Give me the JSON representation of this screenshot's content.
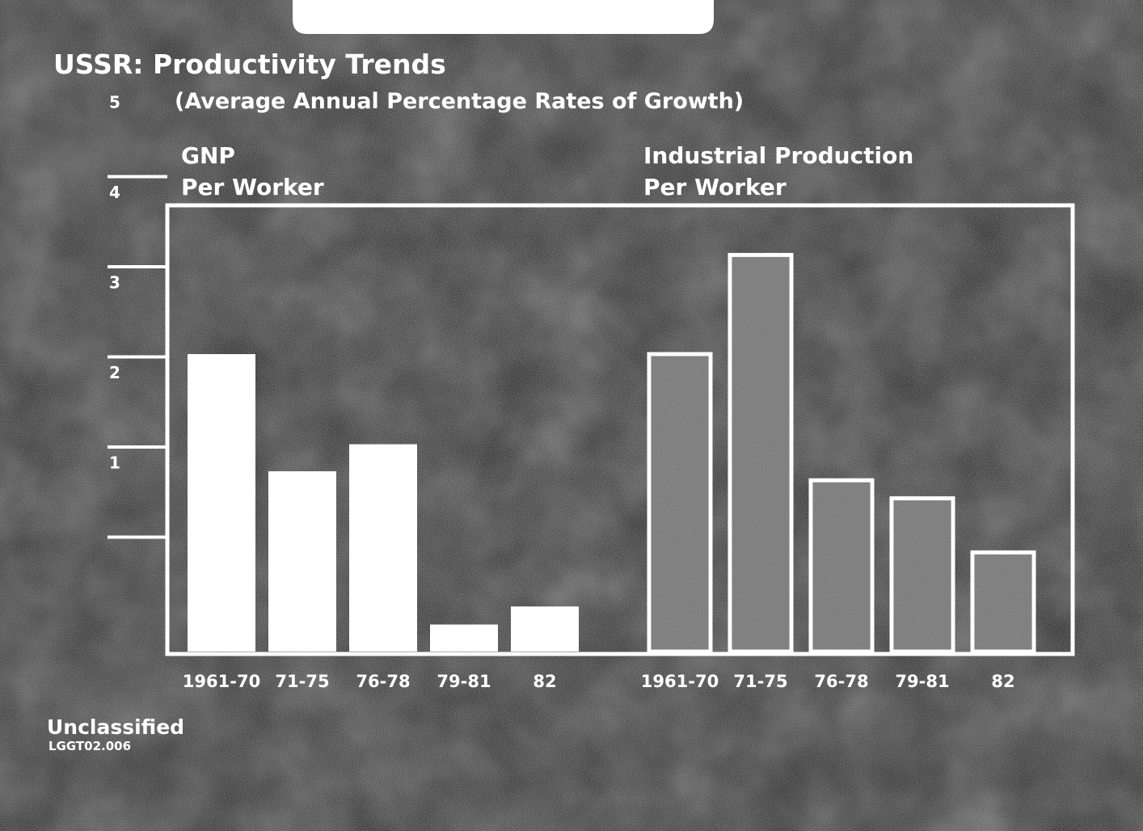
{
  "title": "USSR:  Productivity Trends",
  "subtitle": "(Average Annual Percentage Rates of Growth)",
  "footer": {
    "classification": "Unclassified",
    "code": "LGGT02.006"
  },
  "colors": {
    "background": "#1a1a1a",
    "text": "#ffffff",
    "gnp_bars": "#ffffff",
    "industrial_bars_fill": "#6e6e6e",
    "industrial_bars_outline": "#ffffff"
  },
  "chart_data": {
    "type": "bar",
    "y_ticks": [
      "5",
      "4",
      "3",
      "2",
      "1"
    ],
    "ylim": [
      0,
      5
    ],
    "grid": false,
    "groups": [
      {
        "label_line1": "GNP",
        "label_line2": "Per Worker",
        "style": "solid",
        "categories": [
          "1961-70",
          "71-75",
          "76-78",
          "79-81",
          "82"
        ],
        "values": [
          3.3,
          2.0,
          2.3,
          0.3,
          0.5
        ]
      },
      {
        "label_line1": "Industrial Production",
        "label_line2": "Per Worker",
        "style": "outlined",
        "categories": [
          "1961-70",
          "71-75",
          "76-78",
          "79-81",
          "82"
        ],
        "values": [
          3.3,
          4.4,
          1.9,
          1.7,
          1.1
        ]
      }
    ]
  }
}
